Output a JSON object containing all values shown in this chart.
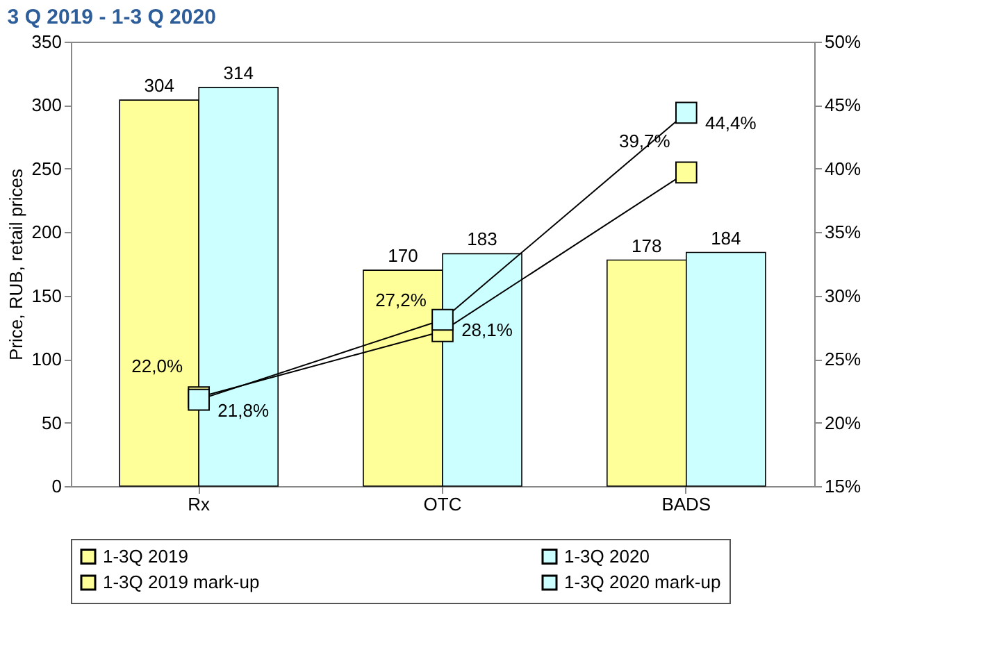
{
  "chart_data": {
    "type": "bar",
    "title": "3 Q 2019 - 1-3 Q 2020",
    "ylabel": "Price, RUB, retail prices",
    "categories": [
      "Rx",
      "OTC",
      "BADS"
    ],
    "series": [
      {
        "name": "1-3Q 2019",
        "color": "#ffff99",
        "values": [
          304,
          170,
          178
        ]
      },
      {
        "name": "1-3Q 2020",
        "color": "#ccffff",
        "values": [
          314,
          183,
          184
        ]
      },
      {
        "name": "1-3Q 2019 mark-up",
        "type": "line",
        "axis": "y2",
        "color": "#ffff99",
        "values": [
          22.0,
          27.2,
          39.7
        ],
        "value_labels": [
          "22,0%",
          "27,2%",
          "39,7%"
        ]
      },
      {
        "name": "1-3Q 2020 mark-up",
        "type": "line",
        "axis": "y2",
        "color": "#ccffff",
        "values": [
          21.8,
          28.1,
          44.4
        ],
        "value_labels": [
          "21,8%",
          "28,1%",
          "44,4%"
        ]
      }
    ],
    "data_labels": true,
    "ylim": [
      0,
      350
    ],
    "yticks": [
      0,
      50,
      100,
      150,
      200,
      250,
      300,
      350
    ],
    "y2lim": [
      15,
      50
    ],
    "y2ticks": [
      {
        "value": 15,
        "label": "15%"
      },
      {
        "value": 20,
        "label": "20%"
      },
      {
        "value": 25,
        "label": "25%"
      },
      {
        "value": 30,
        "label": "30%"
      },
      {
        "value": 35,
        "label": "35%"
      },
      {
        "value": 40,
        "label": "40%"
      },
      {
        "value": 45,
        "label": "45%"
      },
      {
        "value": 50,
        "label": "50%"
      }
    ],
    "marker": "square",
    "line_style": "solid",
    "grid": false,
    "legend": "bottom"
  }
}
